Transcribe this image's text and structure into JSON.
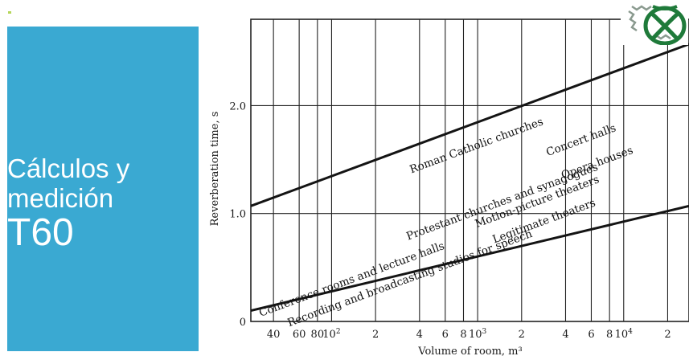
{
  "slide": {
    "title_line1": "Cálculos y",
    "title_line2": "medición",
    "title_line3": "T60",
    "panel_color": "#3aa9d2",
    "logo_icon": "university-seal-icon"
  },
  "chart_data": {
    "type": "line",
    "title": "",
    "xlabel": "Volume of room, m³",
    "ylabel": "Reverberation time, s",
    "x_scale": "log",
    "xlim": [
      28,
      28000
    ],
    "ylim": [
      0,
      2.8
    ],
    "grid": true,
    "x_gridlines": [
      40,
      60,
      80,
      100,
      200,
      400,
      600,
      800,
      1000,
      2000,
      4000,
      6000,
      8000,
      10000,
      20000
    ],
    "x_tick_labels": [
      {
        "value": 40,
        "label": "40",
        "sup": ""
      },
      {
        "value": 60,
        "label": "60",
        "sup": ""
      },
      {
        "value": 80,
        "label": "80",
        "sup": ""
      },
      {
        "value": 100,
        "label": "10",
        "sup": "2"
      },
      {
        "value": 200,
        "label": "2",
        "sup": ""
      },
      {
        "value": 400,
        "label": "4",
        "sup": ""
      },
      {
        "value": 600,
        "label": "6",
        "sup": ""
      },
      {
        "value": 800,
        "label": "8",
        "sup": ""
      },
      {
        "value": 1000,
        "label": "10",
        "sup": "3"
      },
      {
        "value": 2000,
        "label": "2",
        "sup": ""
      },
      {
        "value": 4000,
        "label": "4",
        "sup": ""
      },
      {
        "value": 6000,
        "label": "6",
        "sup": ""
      },
      {
        "value": 8000,
        "label": "8",
        "sup": ""
      },
      {
        "value": 10000,
        "label": "10",
        "sup": "4"
      },
      {
        "value": 20000,
        "label": "2",
        "sup": ""
      }
    ],
    "y_ticks": [
      {
        "value": 0,
        "label": "0"
      },
      {
        "value": 1.0,
        "label": "1.0"
      },
      {
        "value": 2.0,
        "label": "2.0"
      }
    ],
    "series": [
      {
        "points": [
          [
            28,
            1.07
          ],
          [
            28000,
            2.57
          ]
        ]
      },
      {
        "points": [
          [
            28,
            0.1
          ],
          [
            28000,
            1.07
          ]
        ]
      }
    ],
    "annotations": [
      {
        "text": "Roman Catholic churches",
        "x": 1000,
        "y": 1.6
      },
      {
        "text": "Concert halls",
        "x": 5200,
        "y": 1.65
      },
      {
        "text": "Protestant churches and synagogues",
        "x": 1500,
        "y": 1.08
      },
      {
        "text": "Opera houses",
        "x": 6700,
        "y": 1.44
      },
      {
        "text": "Motion-picture theaters",
        "x": 2600,
        "y": 1.08
      },
      {
        "text": "Legitimate theaters",
        "x": 2900,
        "y": 0.9
      },
      {
        "text": "Conference rooms and lecture halls",
        "x": 140,
        "y": 0.36
      },
      {
        "text": "Recording and broadcasting studios for speech",
        "x": 350,
        "y": 0.37
      }
    ]
  }
}
